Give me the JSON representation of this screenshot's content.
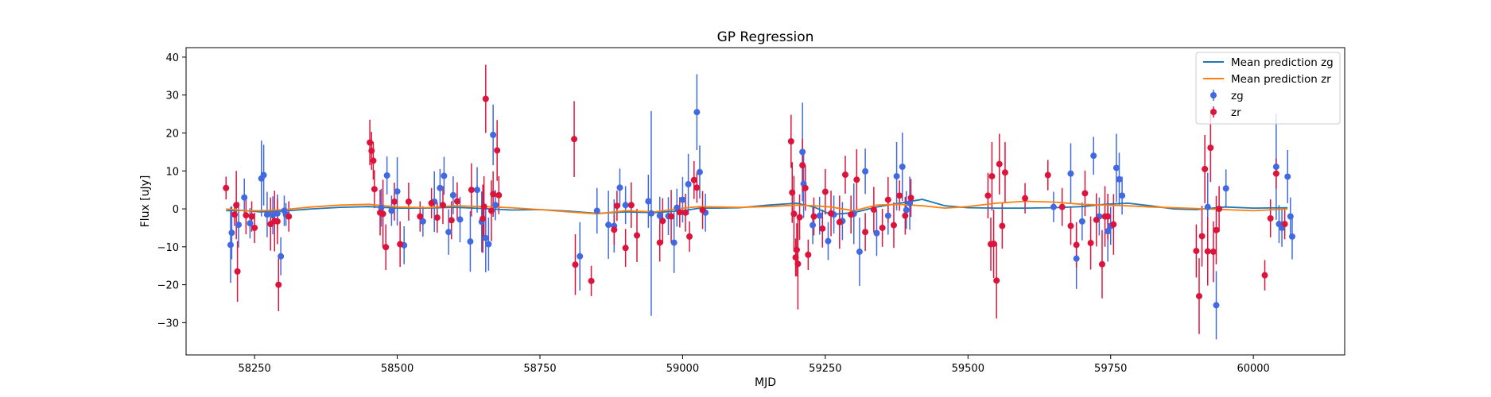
{
  "chart_data": {
    "type": "scatter",
    "title": "GP Regression",
    "xlabel": "MJD",
    "ylabel": "Flux [uJy]",
    "xlim": [
      58130,
      60160
    ],
    "ylim": [
      -38.5,
      42.5
    ],
    "xticks": [
      58250,
      58500,
      58750,
      59000,
      59250,
      59500,
      59750,
      60000
    ],
    "yticks": [
      -30,
      -20,
      -10,
      0,
      10,
      20,
      30,
      40
    ],
    "grid": false,
    "legend_position": "top-right",
    "colors": {
      "zg_points": "#4169e1",
      "zr_points": "#dc143c",
      "zg_line": "#1f77b4",
      "zr_line": "#ff7f0e"
    },
    "lines": [
      {
        "name": "Mean prediction zg",
        "x": [
          58200,
          58230,
          58260,
          58300,
          58350,
          58400,
          58450,
          58500,
          58550,
          58600,
          58650,
          58700,
          58750,
          58800,
          58850,
          58900,
          58950,
          59000,
          59030,
          59060,
          59100,
          59150,
          59200,
          59230,
          59260,
          59300,
          59340,
          59380,
          59420,
          59460,
          59500,
          59550,
          59600,
          59650,
          59700,
          59740,
          59780,
          59820,
          59860,
          59900,
          59950,
          60000,
          60060
        ],
        "y": [
          -0.5,
          -0.4,
          -0.8,
          -0.6,
          0.0,
          0.4,
          0.6,
          0.2,
          0.2,
          0.4,
          0.1,
          -0.3,
          -0.2,
          -0.6,
          -1.2,
          -0.8,
          -1.0,
          -0.5,
          0.2,
          0.2,
          0.3,
          1.0,
          1.5,
          0.5,
          -1.5,
          -1.0,
          0.5,
          1.5,
          2.5,
          0.8,
          0.3,
          0.2,
          0.2,
          0.3,
          0.6,
          1.2,
          1.5,
          0.8,
          0.0,
          -0.2,
          0.5,
          0.2,
          0.3
        ]
      },
      {
        "name": "Mean prediction zr",
        "x": [
          58200,
          58230,
          58260,
          58300,
          58350,
          58400,
          58450,
          58500,
          58550,
          58600,
          58650,
          58700,
          58750,
          58800,
          58850,
          58900,
          58950,
          59000,
          59030,
          59060,
          59100,
          59150,
          59200,
          59230,
          59260,
          59300,
          59340,
          59380,
          59420,
          59460,
          59500,
          59550,
          59600,
          59650,
          59700,
          59740,
          59780,
          59820,
          59860,
          59900,
          59950,
          60000,
          60060
        ],
        "y": [
          0.0,
          -0.5,
          -0.5,
          -0.2,
          0.5,
          1.0,
          1.2,
          0.5,
          0.3,
          0.8,
          0.6,
          0.3,
          -0.2,
          -0.8,
          -1.3,
          -0.5,
          -0.8,
          0.2,
          0.6,
          0.5,
          0.4,
          0.6,
          1.0,
          0.8,
          0.5,
          -0.5,
          1.0,
          1.2,
          0.8,
          0.2,
          0.6,
          1.5,
          2.0,
          1.8,
          1.2,
          1.0,
          0.8,
          0.5,
          0.3,
          0.1,
          -0.2,
          -0.5,
          0.0
        ]
      }
    ],
    "series": [
      {
        "name": "zg",
        "x": [
          58208,
          58210,
          58222,
          58232,
          58242,
          58262,
          58266,
          58272,
          58282,
          58290,
          58296,
          58302,
          58305,
          58472,
          58482,
          58490,
          58500,
          58512,
          58545,
          58565,
          58575,
          58582,
          58590,
          58598,
          58610,
          58628,
          58640,
          58648,
          58655,
          58660,
          58668,
          58672,
          58820,
          58850,
          58870,
          58880,
          58890,
          58900,
          58940,
          58945,
          58960,
          58975,
          58985,
          58990,
          59000,
          59010,
          59025,
          59030,
          59040,
          59210,
          59212,
          59228,
          59240,
          59255,
          59265,
          59280,
          59300,
          59310,
          59320,
          59340,
          59360,
          59375,
          59385,
          59392,
          59398,
          59650,
          59680,
          59690,
          59700,
          59720,
          59730,
          59745,
          59750,
          59760,
          59765,
          59770,
          59920,
          59935,
          59952,
          60040,
          60045,
          60050,
          60060,
          60065,
          60068
        ],
        "y": [
          -9.5,
          -6.3,
          -4.2,
          3.0,
          -3.8,
          8.0,
          8.9,
          -1.5,
          -1.7,
          -1.2,
          -12.5,
          -0.5,
          -1.5,
          0.3,
          8.8,
          -0.5,
          4.6,
          -9.6,
          -3.3,
          1.9,
          5.5,
          8.7,
          -6.1,
          3.6,
          -2.8,
          -8.6,
          5.0,
          -3.4,
          -7.7,
          -9.3,
          19.5,
          1.0,
          -12.5,
          -0.5,
          -4.2,
          -4.5,
          5.6,
          1.0,
          2.0,
          -1.2,
          -1.8,
          -1.9,
          -8.9,
          0.3,
          2.4,
          6.5,
          25.5,
          9.7,
          -1.0,
          15.0,
          6.6,
          -4.3,
          -1.8,
          -8.5,
          -1.5,
          -3.2,
          -1.3,
          -11.3,
          9.9,
          -6.4,
          -1.8,
          8.6,
          11.1,
          -0.3,
          1.5,
          0.5,
          9.3,
          -13.1,
          -3.3,
          14.0,
          -2.0,
          -5.9,
          -4.5,
          10.8,
          7.8,
          3.5,
          0.5,
          -25.4,
          5.4,
          11.1,
          -4.0,
          -5.0,
          8.5,
          -2.0,
          -7.3
        ],
        "err": [
          10,
          7,
          6,
          5,
          4,
          10,
          8,
          6,
          5,
          5,
          5,
          4,
          3,
          5,
          5,
          4,
          9,
          5,
          4,
          8,
          5,
          5,
          6,
          5,
          6,
          8,
          6,
          8,
          9,
          7,
          8,
          4,
          9,
          6,
          9,
          7,
          5,
          5,
          7,
          27,
          5,
          5,
          8,
          5,
          6,
          8,
          10,
          7,
          5,
          13,
          9,
          5,
          5,
          5,
          5,
          5,
          8,
          9,
          6,
          6,
          5,
          9,
          9,
          5,
          7,
          4,
          8,
          8,
          5,
          5,
          5,
          8,
          5,
          9,
          7,
          5,
          9,
          9,
          5,
          14,
          5,
          5,
          7,
          5,
          6
        ]
      },
      {
        "name": "zr",
        "x": [
          58200,
          58215,
          58218,
          58220,
          58235,
          58245,
          58250,
          58278,
          58285,
          58290,
          58292,
          58310,
          58452,
          58455,
          58458,
          58460,
          58470,
          58475,
          58480,
          58495,
          58505,
          58520,
          58540,
          58560,
          58570,
          58580,
          58595,
          58605,
          58630,
          58650,
          58652,
          58655,
          58665,
          58668,
          58675,
          58678,
          58810,
          58812,
          58840,
          58880,
          58885,
          58900,
          58910,
          58920,
          58960,
          58965,
          58980,
          58995,
          59005,
          59012,
          59020,
          59025,
          59035,
          59190,
          59192,
          59195,
          59198,
          59200,
          59202,
          59205,
          59210,
          59215,
          59220,
          59230,
          59245,
          59250,
          59260,
          59275,
          59285,
          59295,
          59305,
          59320,
          59335,
          59350,
          59360,
          59370,
          59380,
          59390,
          59400,
          59535,
          59540,
          59542,
          59545,
          59550,
          59555,
          59560,
          59565,
          59600,
          59640,
          59665,
          59680,
          59690,
          59705,
          59715,
          59725,
          59735,
          59740,
          59745,
          59755,
          59900,
          59905,
          59910,
          59915,
          59920,
          59925,
          59930,
          59935,
          59940,
          60020,
          60030,
          60040,
          60055
        ],
        "y": [
          5.5,
          -1.5,
          1.0,
          -16.5,
          -1.7,
          -2.0,
          -5.0,
          -4.0,
          -3.2,
          -3.3,
          -20.0,
          -2.0,
          17.5,
          15.3,
          12.7,
          5.2,
          -1.0,
          -1.3,
          -10.1,
          1.9,
          -9.3,
          1.9,
          -2.0,
          1.5,
          -2.3,
          1.0,
          -3.0,
          2.0,
          5.0,
          -2.6,
          0.6,
          29.0,
          -0.5,
          3.9,
          15.4,
          3.6,
          18.4,
          -14.7,
          -19.0,
          -5.5,
          0.8,
          -10.3,
          1.0,
          -7.0,
          -8.9,
          -3.2,
          -2.0,
          -0.9,
          -1.0,
          -7.3,
          7.6,
          5.6,
          -0.3,
          17.8,
          4.3,
          -1.3,
          -12.8,
          -10.8,
          -14.5,
          -2.2,
          11.5,
          5.5,
          -12.1,
          -2.0,
          -5.2,
          4.5,
          -1.2,
          -3.5,
          9.0,
          -1.5,
          7.7,
          -6.1,
          -0.2,
          -5.0,
          2.4,
          -4.3,
          3.5,
          -1.8,
          2.9,
          3.5,
          -9.3,
          8.6,
          -9.2,
          -18.9,
          11.8,
          -4.5,
          9.6,
          2.8,
          8.9,
          0.5,
          -4.5,
          -9.5,
          4.1,
          -9.0,
          -2.9,
          -14.6,
          -2.0,
          -2.0,
          -4.1,
          -11.1,
          -23.0,
          -7.2,
          10.5,
          -11.2,
          16.1,
          -11.3,
          -5.6,
          0.0,
          -17.5,
          -2.5,
          9.3,
          -4.0
        ],
        "err": [
          3,
          3,
          9,
          8,
          5,
          4,
          4,
          7,
          8,
          6,
          7,
          4,
          6,
          5,
          5,
          5,
          6,
          9,
          6,
          5,
          6,
          5,
          4,
          4,
          4,
          5,
          5,
          5,
          7,
          9,
          8,
          9,
          8,
          6,
          8,
          5,
          10,
          8,
          4,
          4,
          4,
          5,
          6,
          7,
          5,
          6,
          7,
          4,
          5,
          4,
          5,
          4,
          5,
          7,
          8,
          10,
          5,
          7,
          12,
          6,
          7,
          6,
          4,
          5,
          5,
          6,
          6,
          7,
          5,
          5,
          8,
          5,
          6,
          5,
          6,
          6,
          4,
          5,
          5,
          6,
          7,
          9,
          9,
          10,
          8,
          6,
          8,
          4,
          4,
          5,
          5,
          6,
          6,
          7,
          7,
          9,
          8,
          6,
          8,
          7,
          10,
          8,
          9,
          9,
          9,
          8,
          9,
          6,
          4,
          5,
          4,
          4
        ]
      }
    ]
  }
}
